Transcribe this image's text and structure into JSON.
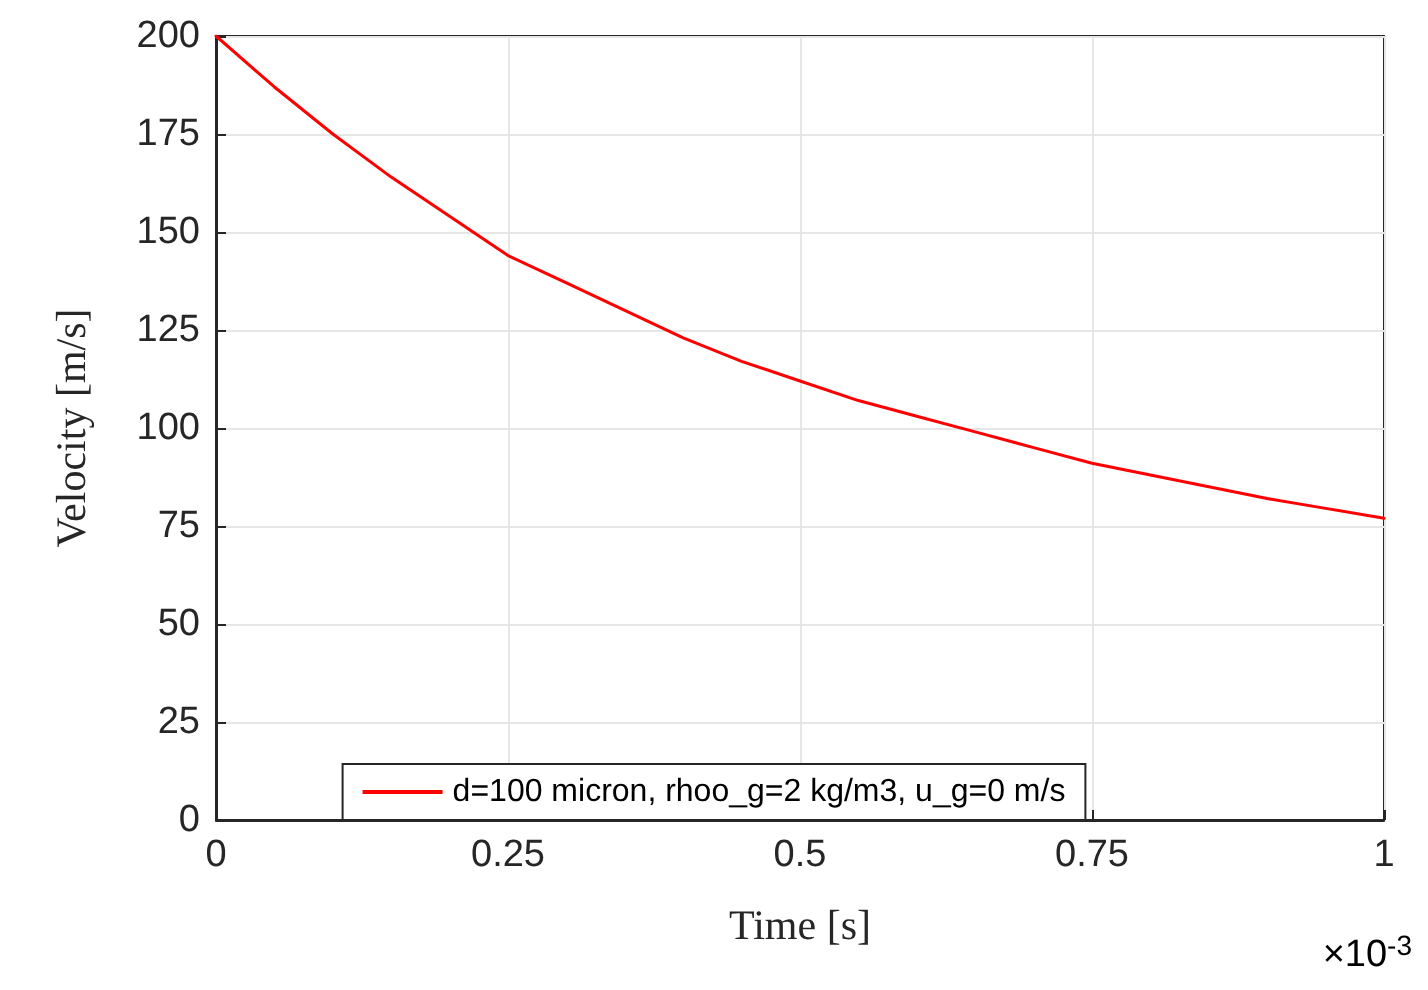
{
  "chart_data": {
    "type": "line",
    "xlabel": "Time [s]",
    "ylabel": "Velocity [m/s]",
    "x": [
      0,
      0.05,
      0.1,
      0.15,
      0.2,
      0.25,
      0.3,
      0.35,
      0.4,
      0.45,
      0.5,
      0.55,
      0.6,
      0.65,
      0.7,
      0.75,
      0.8,
      0.85,
      0.9,
      0.95,
      1
    ],
    "series": [
      {
        "name": "d=100 micron, rhoo_g=2 kg/m3, u_g=0 m/s",
        "color": "#ff0000",
        "values": [
          200,
          187,
          175,
          164,
          154,
          144,
          137,
          130,
          123,
          117,
          112,
          107,
          103,
          99,
          95,
          91,
          88,
          85,
          82,
          79.5,
          77
        ]
      }
    ],
    "xlim": [
      0,
      1
    ],
    "xticks": [
      0,
      0.25,
      0.5,
      0.75,
      1
    ],
    "ylim": [
      0,
      200
    ],
    "yticks": [
      0,
      25,
      50,
      75,
      100,
      125,
      150,
      175,
      200
    ],
    "grid": true,
    "legend": "bottom",
    "marker": "none",
    "line_style": "solid",
    "annotations": [
      "×10$^{-3}$"
    ]
  }
}
